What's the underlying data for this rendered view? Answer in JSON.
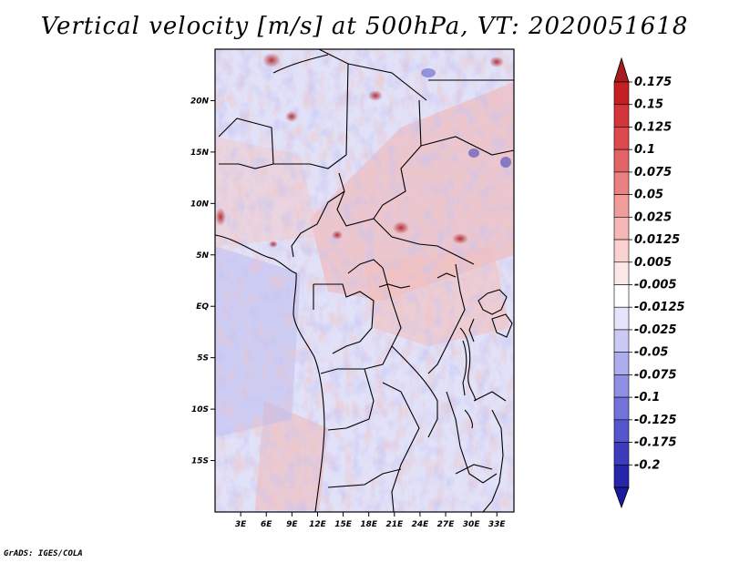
{
  "title": "Vertical velocity [m/s] at 500hPa, VT: 2020051618",
  "credit": "GrADS: IGES/COLA",
  "map": {
    "lon_range": [
      0,
      35
    ],
    "lat_range": [
      -20,
      25
    ],
    "lat_ticks": [
      {
        "value": 20,
        "label": "20N"
      },
      {
        "value": 15,
        "label": "15N"
      },
      {
        "value": 10,
        "label": "10N"
      },
      {
        "value": 5,
        "label": "5N"
      },
      {
        "value": 0,
        "label": "EQ"
      },
      {
        "value": -5,
        "label": "5S"
      },
      {
        "value": -10,
        "label": "10S"
      },
      {
        "value": -15,
        "label": "15S"
      }
    ],
    "lon_ticks": [
      {
        "value": 3,
        "label": "3E"
      },
      {
        "value": 6,
        "label": "6E"
      },
      {
        "value": 9,
        "label": "9E"
      },
      {
        "value": 12,
        "label": "12E"
      },
      {
        "value": 15,
        "label": "15E"
      },
      {
        "value": 18,
        "label": "18E"
      },
      {
        "value": 21,
        "label": "21E"
      },
      {
        "value": 24,
        "label": "24E"
      },
      {
        "value": 27,
        "label": "27E"
      },
      {
        "value": 30,
        "label": "30E"
      },
      {
        "value": 33,
        "label": "33E"
      }
    ]
  },
  "colorbar": {
    "levels": [
      {
        "label": "0.175",
        "color": "#c61f23"
      },
      {
        "label": "0.15",
        "color": "#d4353a"
      },
      {
        "label": "0.125",
        "color": "#dc4a4d"
      },
      {
        "label": "0.1",
        "color": "#e36466"
      },
      {
        "label": "0.075",
        "color": "#ea8080"
      },
      {
        "label": "0.05",
        "color": "#f09c9b"
      },
      {
        "label": "0.025",
        "color": "#f5b8b7"
      },
      {
        "label": "0.0125",
        "color": "#f9d2d0"
      },
      {
        "label": "0.005",
        "color": "#fce8e6"
      },
      {
        "label": "-0.005",
        "color": "#ffffff"
      },
      {
        "label": "-0.0125",
        "color": "#e4e4fb"
      },
      {
        "label": "-0.025",
        "color": "#cacaf5"
      },
      {
        "label": "-0.05",
        "color": "#adadee"
      },
      {
        "label": "-0.075",
        "color": "#8f8fe4"
      },
      {
        "label": "-0.1",
        "color": "#7272d9"
      },
      {
        "label": "-0.125",
        "color": "#5656cc"
      },
      {
        "label": "-0.175",
        "color": "#3c3cbd"
      },
      {
        "label": "-0.2",
        "color": "#2626ab"
      }
    ],
    "top_color": "#a81b1f",
    "bottom_color": "#1a1a9c"
  }
}
